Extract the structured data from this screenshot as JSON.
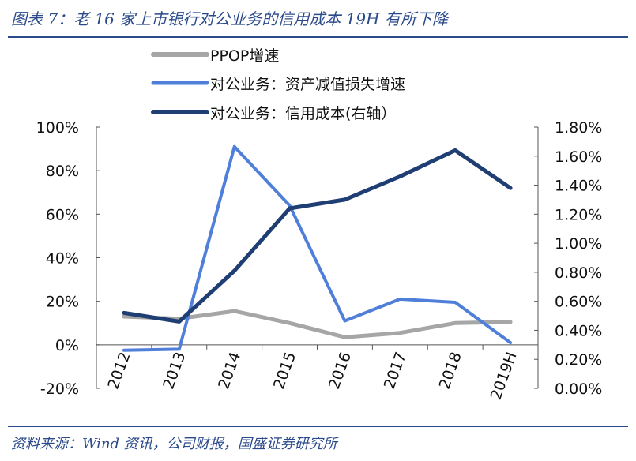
{
  "title": "图表 7：老 16 家上市银行对公业务的信用成本 19H 有所下降",
  "source": "资料来源：Wind 资讯，公司财报，国盛证券研究所",
  "chart_data": {
    "type": "line",
    "categories": [
      "2012",
      "2013",
      "2014",
      "2015",
      "2016",
      "2017",
      "2018",
      "2019H"
    ],
    "series": [
      {
        "name": "PPOP增速",
        "axis": "left",
        "color": "#a6a6a6",
        "values": [
          13,
          12,
          15.5,
          10,
          3.5,
          5.5,
          10,
          10.5
        ]
      },
      {
        "name": "对公业务：资产减值损失增速",
        "axis": "left",
        "color": "#4f7fd9",
        "values": [
          -2.5,
          -2,
          91,
          64,
          11,
          21,
          19.5,
          1
        ]
      },
      {
        "name": "对公业务：信用成本(右轴）",
        "axis": "right",
        "color": "#1f3e73",
        "values": [
          0.52,
          0.46,
          0.81,
          1.24,
          1.3,
          1.46,
          1.64,
          1.38
        ]
      }
    ],
    "yleft": {
      "min": -20,
      "max": 100,
      "ticks": [
        "100%",
        "80%",
        "60%",
        "40%",
        "20%",
        "0%",
        "-20%"
      ]
    },
    "yright": {
      "min": 0,
      "max": 1.8,
      "ticks": [
        "1.80%",
        "1.60%",
        "1.40%",
        "1.20%",
        "1.00%",
        "0.80%",
        "0.60%",
        "0.40%",
        "0.20%",
        "0.00%"
      ]
    },
    "legend_position": "top-center"
  }
}
